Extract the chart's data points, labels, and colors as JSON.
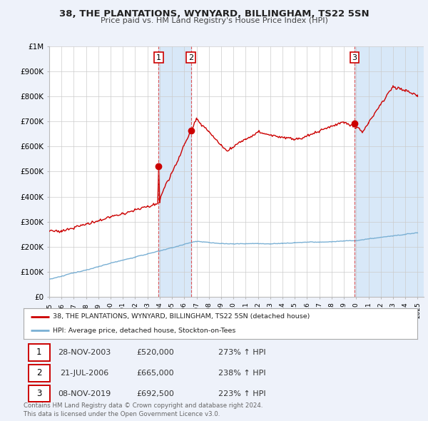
{
  "title1": "38, THE PLANTATIONS, WYNYARD, BILLINGHAM, TS22 5SN",
  "title2": "Price paid vs. HM Land Registry's House Price Index (HPI)",
  "legend_line1": "38, THE PLANTATIONS, WYNYARD, BILLINGHAM, TS22 5SN (detached house)",
  "legend_line2": "HPI: Average price, detached house, Stockton-on-Tees",
  "footer1": "Contains HM Land Registry data © Crown copyright and database right 2024.",
  "footer2": "This data is licensed under the Open Government Licence v3.0.",
  "sale_color": "#cc0000",
  "hpi_color": "#7ab0d4",
  "bg_color": "#eef2fa",
  "plot_bg": "#ffffff",
  "span_color": "#d8e8f8",
  "sale_points_x": [
    2003.9167,
    2006.5417,
    2019.875
  ],
  "sale_points_y": [
    520000,
    665000,
    692500
  ],
  "vline_color": "#dd4444",
  "table_rows": [
    {
      "num": "1",
      "date": "28-NOV-2003",
      "price": "£520,000",
      "pct": "273% ↑ HPI"
    },
    {
      "num": "2",
      "date": "21-JUL-2006",
      "price": "£665,000",
      "pct": "238% ↑ HPI"
    },
    {
      "num": "3",
      "date": "08-NOV-2019",
      "price": "£692,500",
      "pct": "223% ↑ HPI"
    }
  ],
  "ylim": [
    0,
    1000000
  ],
  "yticks": [
    0,
    100000,
    200000,
    300000,
    400000,
    500000,
    600000,
    700000,
    800000,
    900000,
    1000000
  ],
  "ytick_labels": [
    "£0",
    "£100K",
    "£200K",
    "£300K",
    "£400K",
    "£500K",
    "£600K",
    "£700K",
    "£800K",
    "£900K",
    "£1M"
  ],
  "xmin": 1995.0,
  "xmax": 2025.5
}
